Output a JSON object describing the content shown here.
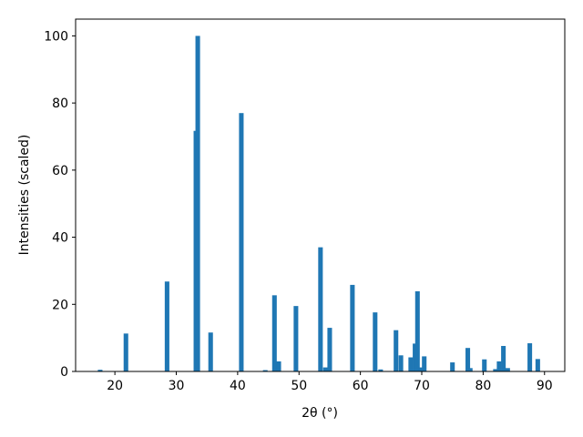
{
  "chart_data": {
    "type": "bar",
    "xlabel": "2θ (°)",
    "ylabel": "Intensities (scaled)",
    "x": [
      17.6,
      21.8,
      28.5,
      33.2,
      33.5,
      35.6,
      40.6,
      44.5,
      46.0,
      46.7,
      49.5,
      53.5,
      54.3,
      55.0,
      58.7,
      62.4,
      63.3,
      65.8,
      66.6,
      68.2,
      68.9,
      69.3,
      69.8,
      70.4,
      75.0,
      77.5,
      77.9,
      80.2,
      82.0,
      82.6,
      83.3,
      84.0,
      87.6,
      88.9
    ],
    "values": [
      0.5,
      11.3,
      26.8,
      71.7,
      100,
      11.6,
      77,
      0.4,
      22.7,
      3,
      19.5,
      37,
      1.2,
      13,
      25.8,
      17.6,
      0.6,
      12.3,
      4.8,
      4.2,
      8.3,
      23.9,
      1.2,
      4.5,
      2.7,
      7,
      1,
      3.6,
      0.7,
      3,
      7.6,
      1,
      8.4,
      3.7
    ],
    "color": "#1f77b4",
    "xlim": [
      13.6,
      93.3
    ],
    "xticks": [
      20,
      30,
      40,
      50,
      60,
      70,
      80,
      90
    ],
    "ylim": [
      0,
      105
    ],
    "yticks": [
      0,
      20,
      40,
      60,
      80,
      100
    ]
  }
}
